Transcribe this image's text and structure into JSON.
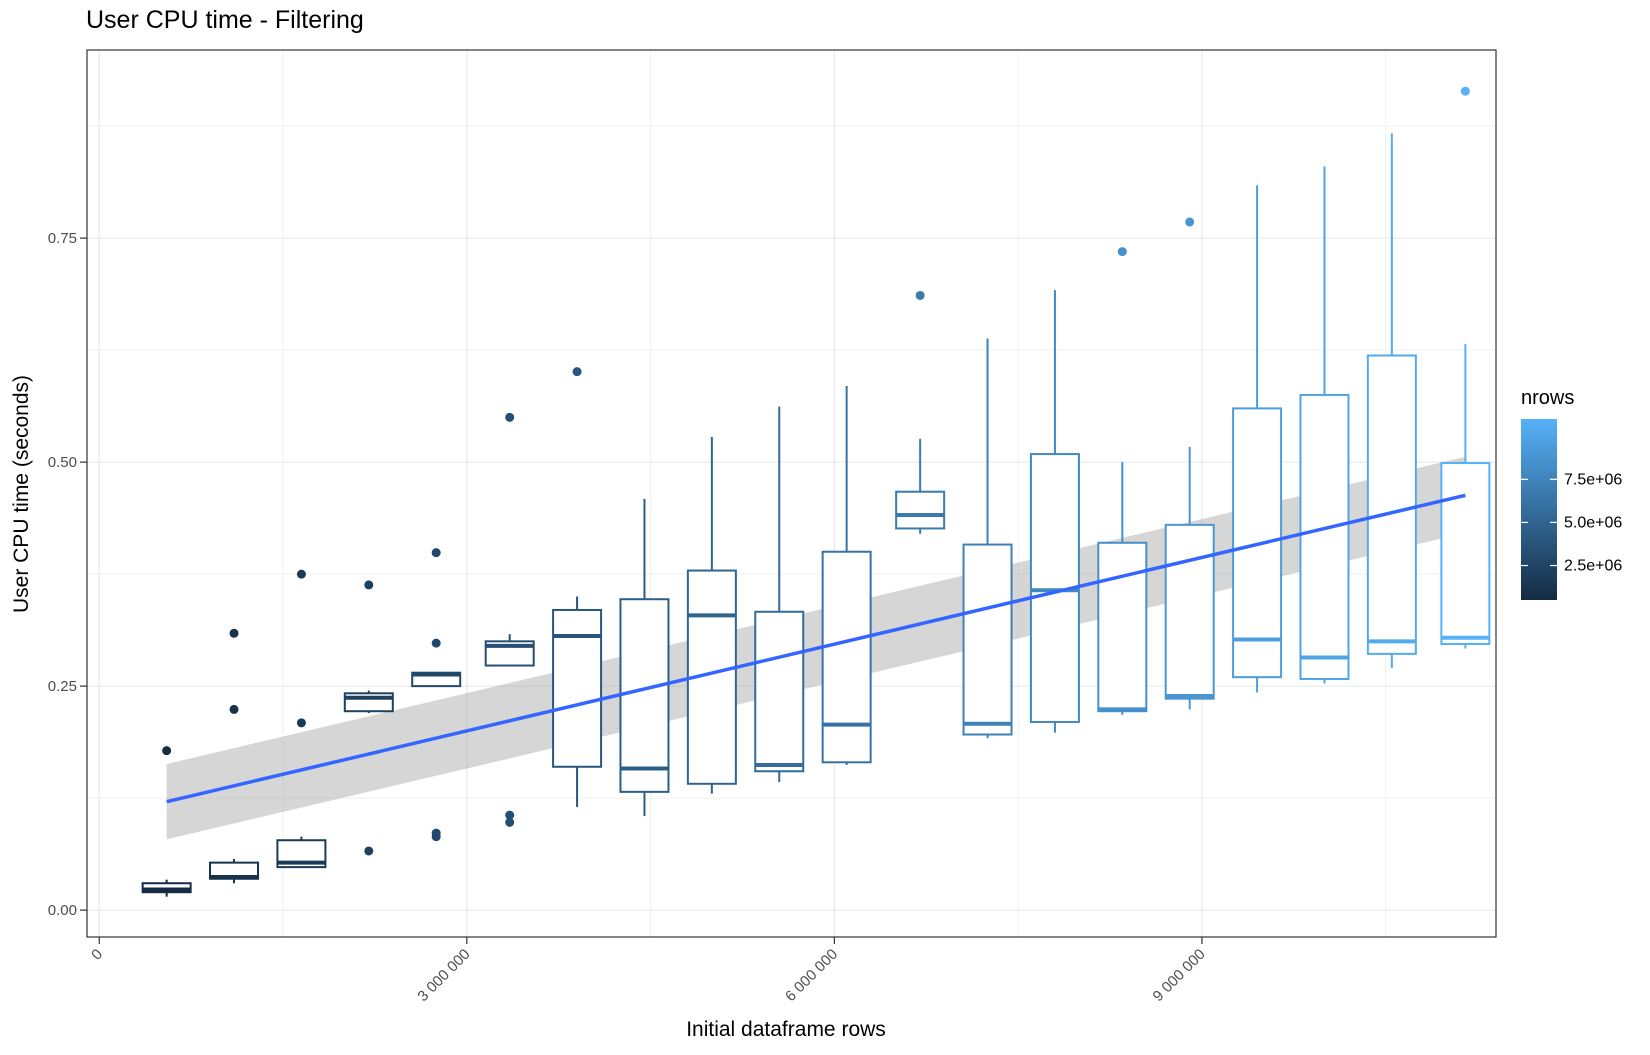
{
  "chart_data": {
    "type": "box",
    "title": "User CPU time - Filtering",
    "xlabel": "Initial dataframe rows",
    "ylabel": "User CPU time (seconds)",
    "xlim": [
      -100000,
      11400000
    ],
    "ylim": [
      -0.03,
      0.96
    ],
    "x_ticks": [
      0,
      3000000,
      6000000,
      9000000
    ],
    "x_tick_labels": [
      "0",
      "3 000 000",
      "6 000 000",
      "9 000 000"
    ],
    "y_ticks": [
      0,
      0.25,
      0.5,
      0.75
    ],
    "y_tick_labels": [
      "0.00",
      "0.25",
      "0.50",
      "0.75"
    ],
    "grid": true,
    "legend": {
      "title": "nrows",
      "position": "right",
      "type": "colorbar",
      "range": [
        500000,
        11000000
      ],
      "ticks": [
        2500000,
        5000000,
        7500000
      ],
      "tick_labels": [
        "2.5e+06",
        "5.0e+06",
        "7.5e+06"
      ],
      "colors": [
        "#132B43",
        "#56B1F7"
      ]
    },
    "boxes": [
      {
        "x": 550000,
        "whisker_low": 0.015,
        "q1": 0.02,
        "median": 0.023,
        "q3": 0.03,
        "whisker_high": 0.034,
        "outliers": [
          0.178
        ]
      },
      {
        "x": 1100000,
        "whisker_low": 0.03,
        "q1": 0.035,
        "median": 0.037,
        "q3": 0.053,
        "whisker_high": 0.057,
        "outliers": [
          0.309,
          0.224
        ]
      },
      {
        "x": 1650000,
        "whisker_low": 0.048,
        "q1": 0.048,
        "median": 0.053,
        "q3": 0.078,
        "whisker_high": 0.082,
        "outliers": [
          0.375,
          0.209
        ]
      },
      {
        "x": 2200000,
        "whisker_low": 0.22,
        "q1": 0.222,
        "median": 0.237,
        "q3": 0.242,
        "whisker_high": 0.245,
        "outliers": [
          0.363,
          0.066
        ]
      },
      {
        "x": 2750000,
        "whisker_low": 0.25,
        "q1": 0.25,
        "median": 0.263,
        "q3": 0.265,
        "whisker_high": 0.265,
        "outliers": [
          0.399,
          0.298,
          0.086,
          0.082
        ]
      },
      {
        "x": 3350000,
        "whisker_low": 0.273,
        "q1": 0.273,
        "median": 0.295,
        "q3": 0.3,
        "whisker_high": 0.308,
        "outliers": [
          0.55,
          0.106,
          0.098
        ]
      },
      {
        "x": 3900000,
        "whisker_low": 0.115,
        "q1": 0.16,
        "median": 0.306,
        "q3": 0.335,
        "whisker_high": 0.35,
        "outliers": [
          0.601
        ]
      },
      {
        "x": 4450000,
        "whisker_low": 0.105,
        "q1": 0.132,
        "median": 0.158,
        "q3": 0.347,
        "whisker_high": 0.459,
        "outliers": []
      },
      {
        "x": 5000000,
        "whisker_low": 0.13,
        "q1": 0.141,
        "median": 0.329,
        "q3": 0.379,
        "whisker_high": 0.528,
        "outliers": []
      },
      {
        "x": 5550000,
        "whisker_low": 0.143,
        "q1": 0.155,
        "median": 0.162,
        "q3": 0.333,
        "whisker_high": 0.562,
        "outliers": []
      },
      {
        "x": 6100000,
        "whisker_low": 0.162,
        "q1": 0.165,
        "median": 0.207,
        "q3": 0.4,
        "whisker_high": 0.585,
        "outliers": []
      },
      {
        "x": 6700000,
        "whisker_low": 0.42,
        "q1": 0.426,
        "median": 0.441,
        "q3": 0.467,
        "whisker_high": 0.526,
        "outliers": [
          0.686
        ]
      },
      {
        "x": 7250000,
        "whisker_low": 0.192,
        "q1": 0.196,
        "median": 0.208,
        "q3": 0.408,
        "whisker_high": 0.638,
        "outliers": []
      },
      {
        "x": 7800000,
        "whisker_low": 0.198,
        "q1": 0.21,
        "median": 0.357,
        "q3": 0.509,
        "whisker_high": 0.692,
        "outliers": []
      },
      {
        "x": 8350000,
        "whisker_low": 0.218,
        "q1": 0.222,
        "median": 0.224,
        "q3": 0.41,
        "whisker_high": 0.5,
        "outliers": [
          0.735
        ]
      },
      {
        "x": 8900000,
        "whisker_low": 0.224,
        "q1": 0.236,
        "median": 0.239,
        "q3": 0.43,
        "whisker_high": 0.517,
        "outliers": [
          0.768
        ]
      },
      {
        "x": 9450000,
        "whisker_low": 0.243,
        "q1": 0.26,
        "median": 0.302,
        "q3": 0.56,
        "whisker_high": 0.809,
        "outliers": []
      },
      {
        "x": 10000000,
        "whisker_low": 0.253,
        "q1": 0.258,
        "median": 0.282,
        "q3": 0.575,
        "whisker_high": 0.83,
        "outliers": []
      },
      {
        "x": 10550000,
        "whisker_low": 0.27,
        "q1": 0.286,
        "median": 0.3,
        "q3": 0.619,
        "whisker_high": 0.867,
        "outliers": []
      },
      {
        "x": 11150000,
        "whisker_low": 0.292,
        "q1": 0.297,
        "median": 0.304,
        "q3": 0.499,
        "whisker_high": 0.632,
        "outliers": [
          0.914
        ]
      }
    ],
    "trend": {
      "type": "linear",
      "color": "#3366FF",
      "x": [
        550000,
        11150000
      ],
      "y": [
        0.121,
        0.463
      ],
      "ci_low": [
        0.079,
        0.421
      ],
      "ci_high": [
        0.163,
        0.506
      ]
    }
  }
}
